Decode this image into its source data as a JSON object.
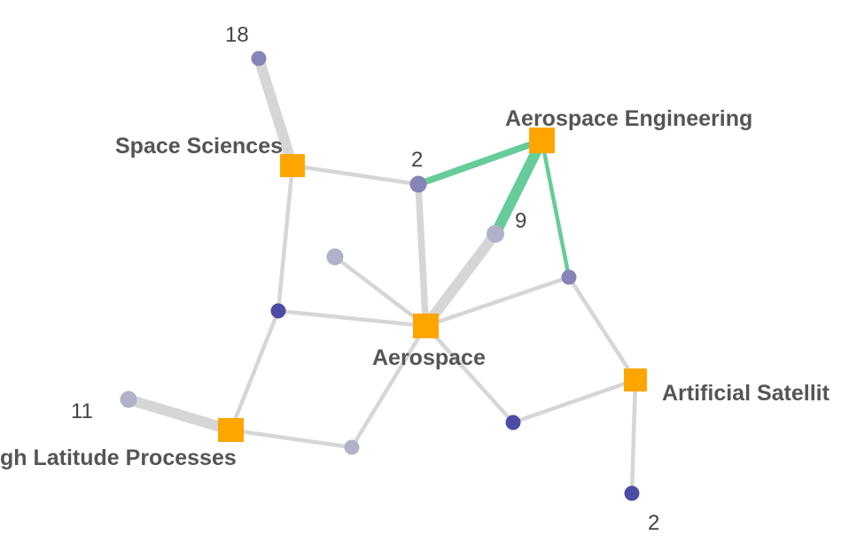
{
  "graph": {
    "colors": {
      "topic": "#ffa500",
      "edge": "#d6d6d6",
      "highlight_edge": "#66cc99",
      "node_light": "#b1b1c9",
      "node_mid": "#8585b8",
      "node_dark": "#4c4ca5"
    },
    "topics": [
      {
        "id": "space-sciences",
        "label": "Space Sciences"
      },
      {
        "id": "aerospace-engineering",
        "label": "Aerospace Engineering"
      },
      {
        "id": "aerospace",
        "label": "Aerospace"
      },
      {
        "id": "artificial-satellites",
        "label": "Artificial Satellit"
      },
      {
        "id": "high-latitude-processes",
        "label": "gh Latitude Processes"
      }
    ],
    "nodes": [
      {
        "id": "n18",
        "shade": "mid",
        "count": "18"
      },
      {
        "id": "n2a",
        "shade": "mid",
        "count": "2"
      },
      {
        "id": "n9",
        "shade": "light",
        "count": "9"
      },
      {
        "id": "n-right",
        "shade": "mid"
      },
      {
        "id": "n-gray",
        "shade": "light"
      },
      {
        "id": "n-left",
        "shade": "dark"
      },
      {
        "id": "n11",
        "shade": "light",
        "count": "11"
      },
      {
        "id": "n-bottom-mid",
        "shade": "light"
      },
      {
        "id": "n-bottom-right",
        "shade": "dark"
      },
      {
        "id": "n2b",
        "shade": "dark",
        "count": "2"
      }
    ],
    "edges": [
      {
        "a": "space-sciences",
        "b": "n18",
        "weight": 3
      },
      {
        "a": "space-sciences",
        "b": "n2a",
        "weight": 1
      },
      {
        "a": "space-sciences",
        "b": "n-left",
        "weight": 1
      },
      {
        "a": "n-left",
        "b": "high-latitude-processes",
        "weight": 1
      },
      {
        "a": "n-left",
        "b": "aerospace",
        "weight": 1
      },
      {
        "a": "n-gray",
        "b": "aerospace",
        "weight": 1
      },
      {
        "a": "n2a",
        "b": "aerospace",
        "weight": 2
      },
      {
        "a": "n9",
        "b": "aerospace",
        "weight": 3
      },
      {
        "a": "n-right",
        "b": "aerospace",
        "weight": 1
      },
      {
        "a": "n-bottom-right",
        "b": "aerospace",
        "weight": 1
      },
      {
        "a": "n-bottom-mid",
        "b": "aerospace",
        "weight": 1
      },
      {
        "a": "n-right",
        "b": "artificial-satellites",
        "weight": 1
      },
      {
        "a": "n-bottom-right",
        "b": "artificial-satellites",
        "weight": 1
      },
      {
        "a": "artificial-satellites",
        "b": "n2b",
        "weight": 1
      },
      {
        "a": "n11",
        "b": "high-latitude-processes",
        "weight": 3
      },
      {
        "a": "high-latitude-processes",
        "b": "n-bottom-mid",
        "weight": 1
      },
      {
        "a": "n2a",
        "b": "aerospace-engineering",
        "weight": 2,
        "highlight": true
      },
      {
        "a": "n9",
        "b": "aerospace-engineering",
        "weight": 3,
        "highlight": true
      },
      {
        "a": "n-right",
        "b": "aerospace-engineering",
        "weight": 1,
        "highlight": true
      }
    ]
  }
}
